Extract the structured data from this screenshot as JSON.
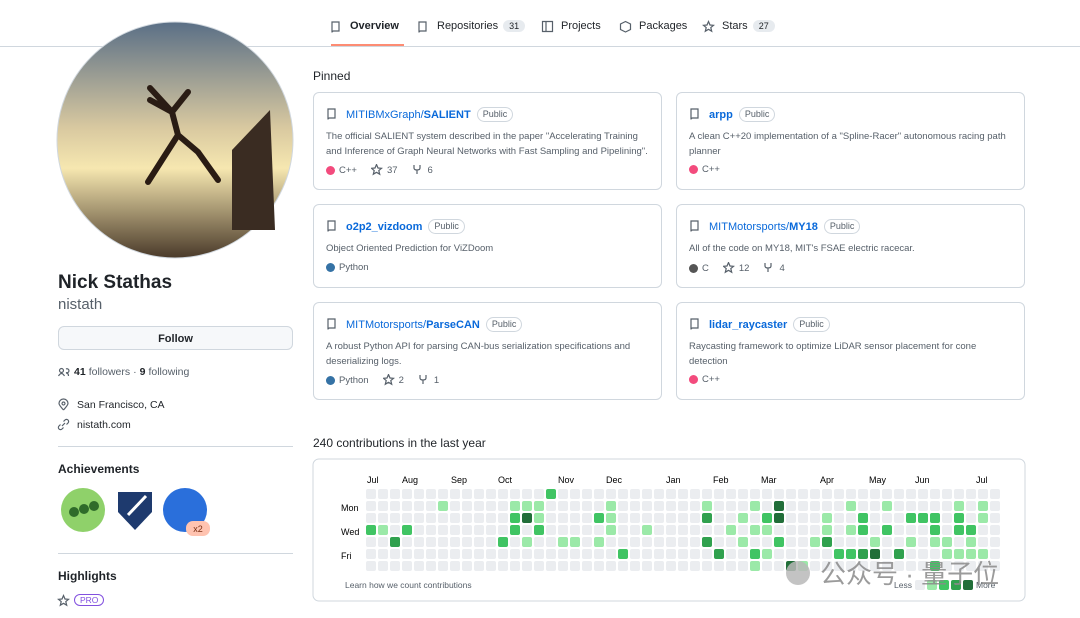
{
  "nav": {
    "tabs": [
      {
        "label": "Overview"
      },
      {
        "label": "Repositories",
        "count": 31
      },
      {
        "label": "Projects"
      },
      {
        "label": "Packages"
      },
      {
        "label": "Stars",
        "count": 27
      }
    ]
  },
  "profile": {
    "name": "Nick Stathas",
    "username": "nistath",
    "follow_button": "Follow",
    "followers": 41,
    "followers_label": "followers",
    "separator": "·",
    "following": 9,
    "following_label": "following",
    "location": "San Francisco, CA",
    "website": "nistath.com"
  },
  "achievements": {
    "title": "Achievements",
    "multiplier": "x2"
  },
  "highlights": {
    "title": "Highlights",
    "badge": "PRO"
  },
  "pinned": {
    "title": "Pinned",
    "repos": [
      {
        "owner": "MITIBMxGraph/",
        "name": "SALIENT",
        "visibility": "Public",
        "description": "The official SALIENT system described in the paper \"Accelerating Training and Inference of Graph Neural Networks with Fast Sampling and Pipelining\".",
        "language": "C++",
        "language_color": "#f34b7d",
        "stars": 37,
        "forks": 6
      },
      {
        "owner": "",
        "name": "arpp",
        "visibility": "Public",
        "description": "A clean C++20 implementation of a \"Spline-Racer\" autonomous racing path planner",
        "language": "C++",
        "language_color": "#f34b7d"
      },
      {
        "owner": "",
        "name": "o2p2_vizdoom",
        "visibility": "Public",
        "description": "Object Oriented Prediction for ViZDoom",
        "language": "Python",
        "language_color": "#3572A5"
      },
      {
        "owner": "MITMotorsports/",
        "name": "MY18",
        "visibility": "Public",
        "description": "All of the code on MY18, MIT's FSAE electric racecar.",
        "language": "C",
        "language_color": "#555555",
        "stars": 12,
        "forks": 4
      },
      {
        "owner": "MITMotorsports/",
        "name": "ParseCAN",
        "visibility": "Public",
        "description": "A robust Python API for parsing CAN-bus serialization specifications and deserializing logs.",
        "language": "Python",
        "language_color": "#3572A5",
        "stars": 2,
        "forks": 1
      },
      {
        "owner": "",
        "name": "lidar_raycaster",
        "visibility": "Public",
        "description": "Raycasting framework to optimize LiDAR sensor placement for cone detection",
        "language": "C++",
        "language_color": "#f34b7d"
      }
    ]
  },
  "contributions": {
    "heading": "240 contributions in the last year",
    "months": [
      "Jul",
      "Aug",
      "Sep",
      "Oct",
      "Nov",
      "Dec",
      "Jan",
      "Feb",
      "Mar",
      "Apr",
      "May",
      "Jun",
      "Jul"
    ],
    "days": [
      "Mon",
      "Wed",
      "Fri"
    ],
    "level_colors": [
      "#ebedf0",
      "#9be9a8",
      "#40c463",
      "#30a14e",
      "#216e39"
    ],
    "levels": [
      [
        0,
        0,
        0,
        0,
        0,
        0,
        0,
        0,
        0,
        0,
        0,
        0,
        0,
        0,
        0,
        2,
        0,
        0,
        0,
        0,
        0,
        0,
        0,
        0,
        0,
        0,
        0,
        0,
        0,
        0,
        0,
        0,
        0,
        0,
        0,
        0,
        0,
        0,
        0,
        0,
        0,
        0,
        0,
        0,
        0,
        0,
        0,
        0,
        0,
        0,
        0,
        0,
        0
      ],
      [
        0,
        0,
        0,
        0,
        0,
        0,
        1,
        0,
        0,
        0,
        0,
        0,
        1,
        1,
        1,
        0,
        0,
        0,
        0,
        0,
        1,
        0,
        0,
        0,
        0,
        0,
        0,
        0,
        1,
        0,
        0,
        0,
        1,
        0,
        4,
        0,
        0,
        0,
        0,
        0,
        1,
        0,
        0,
        1,
        0,
        0,
        0,
        0,
        0,
        1,
        0,
        1,
        0
      ],
      [
        0,
        0,
        0,
        0,
        0,
        0,
        0,
        0,
        0,
        0,
        0,
        0,
        2,
        4,
        1,
        0,
        0,
        0,
        0,
        2,
        1,
        0,
        0,
        0,
        0,
        0,
        0,
        0,
        3,
        0,
        0,
        1,
        0,
        2,
        4,
        0,
        0,
        0,
        1,
        0,
        0,
        2,
        0,
        0,
        0,
        2,
        2,
        2,
        0,
        2,
        0,
        1,
        0
      ],
      [
        2,
        1,
        0,
        2,
        0,
        0,
        0,
        0,
        0,
        0,
        0,
        0,
        2,
        0,
        2,
        0,
        0,
        0,
        0,
        0,
        1,
        0,
        0,
        1,
        0,
        0,
        0,
        0,
        0,
        0,
        1,
        0,
        1,
        1,
        0,
        0,
        0,
        0,
        1,
        0,
        1,
        2,
        0,
        2,
        0,
        0,
        0,
        2,
        0,
        2,
        2,
        0,
        0
      ],
      [
        0,
        0,
        3,
        0,
        0,
        0,
        0,
        0,
        0,
        0,
        0,
        2,
        0,
        1,
        0,
        0,
        1,
        1,
        0,
        1,
        0,
        0,
        0,
        0,
        0,
        0,
        0,
        0,
        3,
        0,
        0,
        1,
        0,
        0,
        2,
        0,
        0,
        1,
        3,
        0,
        0,
        0,
        1,
        0,
        0,
        1,
        0,
        1,
        1,
        0,
        1,
        0,
        0
      ],
      [
        0,
        0,
        0,
        0,
        0,
        0,
        0,
        0,
        0,
        0,
        0,
        0,
        0,
        0,
        0,
        0,
        0,
        0,
        0,
        0,
        0,
        2,
        0,
        0,
        0,
        0,
        0,
        0,
        0,
        3,
        0,
        0,
        2,
        1,
        0,
        0,
        0,
        0,
        0,
        2,
        2,
        3,
        4,
        0,
        3,
        0,
        0,
        0,
        1,
        1,
        1,
        1,
        0
      ],
      [
        0,
        0,
        0,
        0,
        0,
        0,
        0,
        0,
        0,
        0,
        0,
        0,
        0,
        0,
        0,
        0,
        0,
        0,
        0,
        0,
        0,
        0,
        0,
        0,
        0,
        0,
        0,
        0,
        0,
        0,
        0,
        0,
        1,
        0,
        0,
        4,
        1,
        0,
        0,
        0,
        0,
        0,
        0,
        0,
        0,
        0,
        0,
        2,
        0,
        0,
        0,
        0,
        0
      ]
    ],
    "footer": "Learn how we count contributions",
    "less": "Less",
    "more": "More"
  },
  "watermark": "公众号 · 量子位"
}
